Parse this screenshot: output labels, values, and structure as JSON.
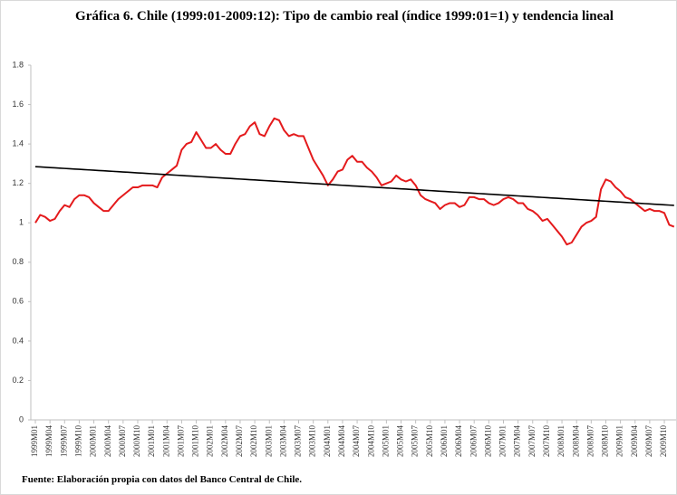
{
  "chart_data": {
    "type": "line",
    "title": "Gráfica 6. Chile (1999:01-2009:12): Tipo de cambio real (índice 1999:01=1) y tendencia lineal",
    "source": "Fuente: Elaboración propia con datos del Banco Central de Chile.",
    "categories": [
      "1999M01",
      null,
      null,
      "1999M04",
      null,
      null,
      "1999M07",
      null,
      null,
      "1999M10",
      null,
      null,
      "2000M01",
      null,
      null,
      "2000M04",
      null,
      null,
      "2000M07",
      null,
      null,
      "2000M10",
      null,
      null,
      "2001M01",
      null,
      null,
      "2001M04",
      null,
      null,
      "2001M07",
      null,
      null,
      "2001M10",
      null,
      null,
      "2002M01",
      null,
      null,
      "2002M04",
      null,
      null,
      "2002M07",
      null,
      null,
      "2002M10",
      null,
      null,
      "2003M01",
      null,
      null,
      "2003M04",
      null,
      null,
      "2003M07",
      null,
      null,
      "2003M10",
      null,
      null,
      "2004M01",
      null,
      null,
      "2004M04",
      null,
      null,
      "2004M07",
      null,
      null,
      "2004M10",
      null,
      null,
      "2005M01",
      null,
      null,
      "2005M04",
      null,
      null,
      "2005M07",
      null,
      null,
      "2005M10",
      null,
      null,
      "2006M01",
      null,
      null,
      "2006M04",
      null,
      null,
      "2006M07",
      null,
      null,
      "2006M10",
      null,
      null,
      "2007M01",
      null,
      null,
      "2007M04",
      null,
      null,
      "2007M07",
      null,
      null,
      "2007M10",
      null,
      null,
      "2008M01",
      null,
      null,
      "2008M04",
      null,
      null,
      "2008M07",
      null,
      null,
      "2008M10",
      null,
      null,
      "2009M01",
      null,
      null,
      "2009M04",
      null,
      null,
      "2009M07",
      null,
      null,
      "2009M10",
      null,
      null
    ],
    "series": [
      {
        "color": "#e41a1c",
        "values": [
          1.0,
          1.04,
          1.03,
          1.01,
          1.02,
          1.06,
          1.09,
          1.08,
          1.12,
          1.14,
          1.14,
          1.13,
          1.1,
          1.08,
          1.06,
          1.06,
          1.09,
          1.12,
          1.14,
          1.16,
          1.18,
          1.18,
          1.19,
          1.19,
          1.19,
          1.18,
          1.23,
          1.25,
          1.27,
          1.29,
          1.37,
          1.4,
          1.41,
          1.46,
          1.42,
          1.38,
          1.38,
          1.4,
          1.37,
          1.35,
          1.35,
          1.4,
          1.44,
          1.45,
          1.49,
          1.51,
          1.45,
          1.44,
          1.49,
          1.53,
          1.52,
          1.47,
          1.44,
          1.45,
          1.44,
          1.44,
          1.38,
          1.32,
          1.28,
          1.24,
          1.19,
          1.22,
          1.26,
          1.27,
          1.32,
          1.34,
          1.31,
          1.31,
          1.28,
          1.26,
          1.23,
          1.19,
          1.2,
          1.21,
          1.24,
          1.22,
          1.21,
          1.22,
          1.19,
          1.14,
          1.12,
          1.11,
          1.1,
          1.07,
          1.09,
          1.1,
          1.1,
          1.08,
          1.09,
          1.13,
          1.13,
          1.12,
          1.12,
          1.1,
          1.09,
          1.1,
          1.12,
          1.13,
          1.12,
          1.1,
          1.1,
          1.07,
          1.06,
          1.04,
          1.01,
          1.02,
          0.99,
          0.96,
          0.93,
          0.89,
          0.9,
          0.94,
          0.98,
          1.0,
          1.01,
          1.03,
          1.17,
          1.22,
          1.21,
          1.18,
          1.16,
          1.13,
          1.12,
          1.1,
          1.08,
          1.06,
          1.07,
          1.06,
          1.06,
          1.05,
          0.99,
          0.98
        ]
      },
      {
        "color": "#000000",
        "values": [
          1.285,
          1.2835,
          1.282,
          1.2805,
          1.279,
          1.2775,
          1.276,
          1.2745,
          1.273,
          1.2715,
          1.27,
          1.2685,
          1.267,
          1.2655,
          1.264,
          1.2625,
          1.261,
          1.2595,
          1.258,
          1.2565,
          1.255,
          1.2535,
          1.252,
          1.2505,
          1.249,
          1.2475,
          1.246,
          1.2445,
          1.243,
          1.2415,
          1.24,
          1.2385,
          1.237,
          1.2355,
          1.234,
          1.2325,
          1.231,
          1.2295,
          1.228,
          1.2265,
          1.225,
          1.2235,
          1.222,
          1.2205,
          1.219,
          1.2175,
          1.216,
          1.2145,
          1.213,
          1.2115,
          1.21,
          1.2085,
          1.207,
          1.2055,
          1.204,
          1.2025,
          1.201,
          1.1995,
          1.198,
          1.1965,
          1.195,
          1.1935,
          1.192,
          1.1905,
          1.189,
          1.1875,
          1.186,
          1.1845,
          1.183,
          1.1815,
          1.18,
          1.1785,
          1.177,
          1.1755,
          1.174,
          1.1725,
          1.171,
          1.1695,
          1.168,
          1.1665,
          1.165,
          1.1635,
          1.162,
          1.1605,
          1.159,
          1.1575,
          1.156,
          1.1545,
          1.153,
          1.1515,
          1.15,
          1.1485,
          1.147,
          1.1455,
          1.144,
          1.1425,
          1.141,
          1.1395,
          1.138,
          1.1365,
          1.135,
          1.1335,
          1.132,
          1.1305,
          1.129,
          1.1275,
          1.126,
          1.1245,
          1.123,
          1.1215,
          1.12,
          1.1185,
          1.117,
          1.1155,
          1.114,
          1.1125,
          1.111,
          1.1095,
          1.108,
          1.1065,
          1.105,
          1.1035,
          1.102,
          1.1005,
          1.099,
          1.0975,
          1.096,
          1.0945,
          1.093,
          1.0915,
          1.09,
          1.0885
        ]
      }
    ],
    "ylim": [
      0,
      1.8
    ],
    "yticks": [
      0,
      0.2,
      0.4,
      0.6,
      0.8,
      1,
      1.2,
      1.4,
      1.6,
      1.8
    ],
    "grid": false
  }
}
